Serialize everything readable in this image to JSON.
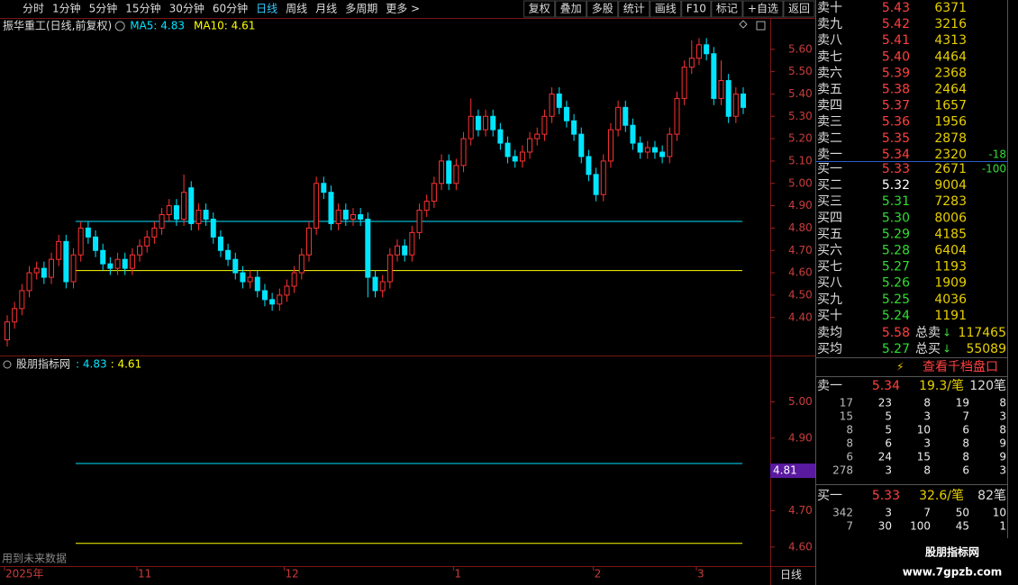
{
  "toolbar": {
    "periods": [
      "分时",
      "1分钟",
      "5分钟",
      "15分钟",
      "30分钟",
      "60分钟",
      "日线",
      "周线",
      "月线",
      "多周期",
      "更多 >"
    ],
    "active": 6,
    "actions": [
      "复权",
      "叠加",
      "多股",
      "统计",
      "画线",
      "F10",
      "标记",
      "+自选",
      "返回"
    ]
  },
  "chart_data": [
    {
      "type": "candlestick",
      "title": "振华重工(日线,前复权)",
      "indicators": [
        {
          "label": "MA5: 4.83",
          "value": 4.83,
          "color": "#00e5ff"
        },
        {
          "label": "MA10: 4.61",
          "value": 4.61,
          "color": "#ffff00"
        }
      ],
      "categories": [
        "2025年",
        null,
        null,
        null,
        null,
        null,
        null,
        null,
        null,
        null,
        null,
        null,
        null,
        null,
        null,
        null,
        null,
        null,
        "11",
        null,
        null,
        null,
        null,
        null,
        null,
        null,
        null,
        null,
        null,
        null,
        null,
        null,
        null,
        null,
        null,
        null,
        null,
        null,
        "12",
        null,
        null,
        null,
        null,
        null,
        null,
        null,
        null,
        null,
        null,
        null,
        null,
        null,
        null,
        null,
        null,
        null,
        null,
        null,
        null,
        null,
        null,
        "1",
        null,
        null,
        null,
        null,
        null,
        null,
        null,
        null,
        null,
        null,
        null,
        null,
        null,
        null,
        null,
        null,
        null,
        null,
        "2",
        null,
        null,
        null,
        null,
        null,
        null,
        null,
        null,
        null,
        null,
        null,
        null,
        null,
        "3",
        null,
        null,
        null,
        null,
        null,
        null
      ],
      "open": [
        4.3,
        4.38,
        4.44,
        4.52,
        4.6,
        4.62,
        4.58,
        4.66,
        4.74,
        4.56,
        4.68,
        4.8,
        4.76,
        4.7,
        4.64,
        4.62,
        4.66,
        4.62,
        4.68,
        4.72,
        4.76,
        4.8,
        4.86,
        4.9,
        4.84,
        4.98,
        4.82,
        4.88,
        4.84,
        4.76,
        4.7,
        4.66,
        4.6,
        4.56,
        4.58,
        4.52,
        4.48,
        4.46,
        4.5,
        4.54,
        4.6,
        4.68,
        4.8,
        5.0,
        4.96,
        4.82,
        4.88,
        4.84,
        4.86,
        4.84,
        4.58,
        4.52,
        4.56,
        4.68,
        4.72,
        4.68,
        4.78,
        4.88,
        4.92,
        5.0,
        5.1,
        5.0,
        5.08,
        5.2,
        5.3,
        5.24,
        5.3,
        5.24,
        5.18,
        5.12,
        5.1,
        5.14,
        5.2,
        5.22,
        5.3,
        5.4,
        5.34,
        5.28,
        5.22,
        5.12,
        5.04,
        4.95,
        5.1,
        5.24,
        5.34,
        5.26,
        5.18,
        5.14,
        5.16,
        5.14,
        5.12,
        5.22,
        5.38,
        5.52,
        5.56,
        5.62,
        5.58,
        5.38,
        5.46,
        5.3,
        5.4
      ],
      "high": [
        4.41,
        4.47,
        4.55,
        4.63,
        4.65,
        4.65,
        4.69,
        4.77,
        4.77,
        4.71,
        4.83,
        4.83,
        4.79,
        4.73,
        4.67,
        4.69,
        4.69,
        4.71,
        4.75,
        4.79,
        4.83,
        4.89,
        4.93,
        4.93,
        5.04,
        5.01,
        4.91,
        4.91,
        4.87,
        4.79,
        4.73,
        4.69,
        4.63,
        4.61,
        4.61,
        4.55,
        4.51,
        4.53,
        4.57,
        4.63,
        4.71,
        4.83,
        5.03,
        5.03,
        4.99,
        4.91,
        4.91,
        4.89,
        4.89,
        4.87,
        4.61,
        4.59,
        4.71,
        4.75,
        4.75,
        4.81,
        4.91,
        4.95,
        5.03,
        5.13,
        5.13,
        5.11,
        5.23,
        5.38,
        5.33,
        5.33,
        5.33,
        5.27,
        5.21,
        5.15,
        5.17,
        5.23,
        5.25,
        5.33,
        5.43,
        5.43,
        5.37,
        5.31,
        5.25,
        5.15,
        5.07,
        5.13,
        5.27,
        5.37,
        5.37,
        5.29,
        5.21,
        5.19,
        5.19,
        5.17,
        5.25,
        5.41,
        5.55,
        5.64,
        5.65,
        5.65,
        5.61,
        5.55,
        5.49,
        5.43,
        5.43
      ],
      "low": [
        4.27,
        4.35,
        4.41,
        4.49,
        4.57,
        4.55,
        4.55,
        4.63,
        4.53,
        4.53,
        4.65,
        4.73,
        4.67,
        4.61,
        4.59,
        4.59,
        4.59,
        4.59,
        4.65,
        4.69,
        4.73,
        4.77,
        4.83,
        4.81,
        4.81,
        4.79,
        4.79,
        4.81,
        4.73,
        4.67,
        4.63,
        4.57,
        4.53,
        4.53,
        4.49,
        4.45,
        4.43,
        4.43,
        4.47,
        4.51,
        4.57,
        4.65,
        4.77,
        4.93,
        4.79,
        4.79,
        4.81,
        4.81,
        4.81,
        4.49,
        4.49,
        4.49,
        4.53,
        4.65,
        4.65,
        4.65,
        4.75,
        4.85,
        4.89,
        4.97,
        4.97,
        4.97,
        5.05,
        5.17,
        5.21,
        5.21,
        5.21,
        5.15,
        5.09,
        5.07,
        5.07,
        5.11,
        5.17,
        5.19,
        5.27,
        5.31,
        5.25,
        5.19,
        5.09,
        5.01,
        4.92,
        4.92,
        5.07,
        5.21,
        5.23,
        5.15,
        5.11,
        5.11,
        5.11,
        5.09,
        5.09,
        5.19,
        5.35,
        5.49,
        5.53,
        5.55,
        5.35,
        5.35,
        5.27,
        5.27,
        5.31
      ],
      "close": [
        4.38,
        4.44,
        4.52,
        4.6,
        4.62,
        4.58,
        4.66,
        4.74,
        4.56,
        4.68,
        4.8,
        4.76,
        4.7,
        4.64,
        4.62,
        4.66,
        4.62,
        4.68,
        4.72,
        4.76,
        4.8,
        4.86,
        4.9,
        4.84,
        4.96,
        4.82,
        4.88,
        4.84,
        4.76,
        4.7,
        4.66,
        4.6,
        4.56,
        4.58,
        4.52,
        4.48,
        4.46,
        4.5,
        4.54,
        4.6,
        4.68,
        4.8,
        5.0,
        4.96,
        4.82,
        4.88,
        4.84,
        4.86,
        4.84,
        4.58,
        4.52,
        4.56,
        4.68,
        4.72,
        4.68,
        4.78,
        4.88,
        4.92,
        5.0,
        5.1,
        5.0,
        5.08,
        5.2,
        5.3,
        5.24,
        5.3,
        5.24,
        5.18,
        5.12,
        5.1,
        5.14,
        5.2,
        5.22,
        5.3,
        5.4,
        5.34,
        5.28,
        5.22,
        5.12,
        5.04,
        4.95,
        5.1,
        5.24,
        5.34,
        5.26,
        5.18,
        5.14,
        5.16,
        5.14,
        5.12,
        5.22,
        5.38,
        5.52,
        5.56,
        5.62,
        5.58,
        5.38,
        5.46,
        5.3,
        5.4,
        5.34
      ],
      "up_color": "#ff3232",
      "down_color": "#00e5ff",
      "ylim": [
        4.25,
        5.74
      ],
      "yticks": [
        {
          "value": 4.4,
          "label": "4.40"
        },
        {
          "value": 4.5,
          "label": "4.50"
        },
        {
          "value": 4.6,
          "label": "4.60"
        },
        {
          "value": 4.7,
          "label": "4.70"
        },
        {
          "value": 4.8,
          "label": "4.80"
        },
        {
          "value": 4.9,
          "label": "4.90"
        },
        {
          "value": 5.0,
          "label": "5.00"
        },
        {
          "value": 5.1,
          "label": "5.10"
        },
        {
          "value": 5.2,
          "label": "5.20"
        },
        {
          "value": 5.3,
          "label": "5.30"
        },
        {
          "value": 5.4,
          "label": "5.40"
        },
        {
          "value": 5.5,
          "label": "5.50"
        },
        {
          "value": 5.6,
          "label": "5.60"
        }
      ],
      "period_label": "日线"
    },
    {
      "type": "indicator",
      "title": "股朋指标网",
      "series": [
        {
          "label": ": 4.83",
          "value": 4.83,
          "color": "#00e5ff"
        },
        {
          "label": ": 4.61",
          "value": 4.61,
          "color": "#ffff00"
        }
      ],
      "ylim": [
        4.55,
        5.12
      ],
      "yticks": [
        {
          "value": 4.6,
          "label": "4.60"
        },
        {
          "value": 4.7,
          "label": "4.70"
        },
        {
          "value": 4.8,
          "label": "4.80"
        },
        {
          "value": 4.9,
          "label": "4.90"
        },
        {
          "value": 5.0,
          "label": "5.00"
        }
      ],
      "marker": {
        "value": 4.81,
        "label": "4.81",
        "color": "#5a1aa0"
      },
      "note": "用到未来数据"
    }
  ],
  "order_book": {
    "asks": [
      {
        "label": "卖十",
        "price": "5.43",
        "volume": "6371",
        "color": "#ff4040"
      },
      {
        "label": "卖九",
        "price": "5.42",
        "volume": "3216",
        "color": "#ff4040"
      },
      {
        "label": "卖八",
        "price": "5.41",
        "volume": "4313",
        "color": "#ff4040"
      },
      {
        "label": "卖七",
        "price": "5.40",
        "volume": "4464",
        "color": "#ff4040"
      },
      {
        "label": "卖六",
        "price": "5.39",
        "volume": "2368",
        "color": "#ff4040"
      },
      {
        "label": "卖五",
        "price": "5.38",
        "volume": "2464",
        "color": "#ff4040"
      },
      {
        "label": "卖四",
        "price": "5.37",
        "volume": "1657",
        "color": "#ff4040"
      },
      {
        "label": "卖三",
        "price": "5.36",
        "volume": "1956",
        "color": "#ff4040"
      },
      {
        "label": "卖二",
        "price": "5.35",
        "volume": "2878",
        "color": "#ff4040"
      },
      {
        "label": "卖一",
        "price": "5.34",
        "volume": "2320",
        "color": "#ff4040",
        "change": "-18"
      }
    ],
    "bids": [
      {
        "label": "买一",
        "price": "5.33",
        "volume": "2671",
        "color": "#ff4040",
        "change": "-100"
      },
      {
        "label": "买二",
        "price": "5.32",
        "volume": "9004",
        "color": "#ffffff"
      },
      {
        "label": "买三",
        "price": "5.31",
        "volume": "7283",
        "color": "#33dd33"
      },
      {
        "label": "买四",
        "price": "5.30",
        "volume": "8006",
        "color": "#33dd33"
      },
      {
        "label": "买五",
        "price": "5.29",
        "volume": "4185",
        "color": "#33dd33"
      },
      {
        "label": "买六",
        "price": "5.28",
        "volume": "6404",
        "color": "#33dd33"
      },
      {
        "label": "买七",
        "price": "5.27",
        "volume": "1193",
        "color": "#33dd33"
      },
      {
        "label": "买八",
        "price": "5.26",
        "volume": "1909",
        "color": "#33dd33"
      },
      {
        "label": "买九",
        "price": "5.25",
        "volume": "4036",
        "color": "#33dd33"
      },
      {
        "label": "买十",
        "price": "5.24",
        "volume": "1191",
        "color": "#33dd33"
      }
    ],
    "summary": [
      {
        "label": "卖均",
        "price": "5.58",
        "color": "#ff4040",
        "total_label": "总卖",
        "arrow": "↓",
        "total": "117465"
      },
      {
        "label": "买均",
        "price": "5.27",
        "color": "#33dd33",
        "total_label": "总买",
        "arrow": "↓",
        "total": "55089"
      }
    ],
    "depth_link": "查看千档盘口",
    "queues": [
      {
        "label": "卖一",
        "price": "5.34",
        "avg": "19.3/笔",
        "count": "120笔",
        "rows": [
          [
            "17",
            "23",
            "8",
            "19",
            "8"
          ],
          [
            "15",
            "5",
            "3",
            "7",
            "3"
          ],
          [
            "8",
            "5",
            "10",
            "6",
            "8"
          ],
          [
            "8",
            "6",
            "3",
            "8",
            "9"
          ],
          [
            "6",
            "24",
            "15",
            "8",
            "9"
          ],
          [
            "278",
            "3",
            "8",
            "6",
            "3"
          ]
        ]
      },
      {
        "label": "买一",
        "price": "5.33",
        "avg": "32.6/笔",
        "count": "82笔",
        "rows": [
          [
            "342",
            "3",
            "7",
            "50",
            "10"
          ],
          [
            "7",
            "30",
            "100",
            "45",
            "1"
          ]
        ]
      }
    ]
  },
  "watermark": {
    "name": "股朋指标网",
    "url": "www.7gpzb.com"
  }
}
